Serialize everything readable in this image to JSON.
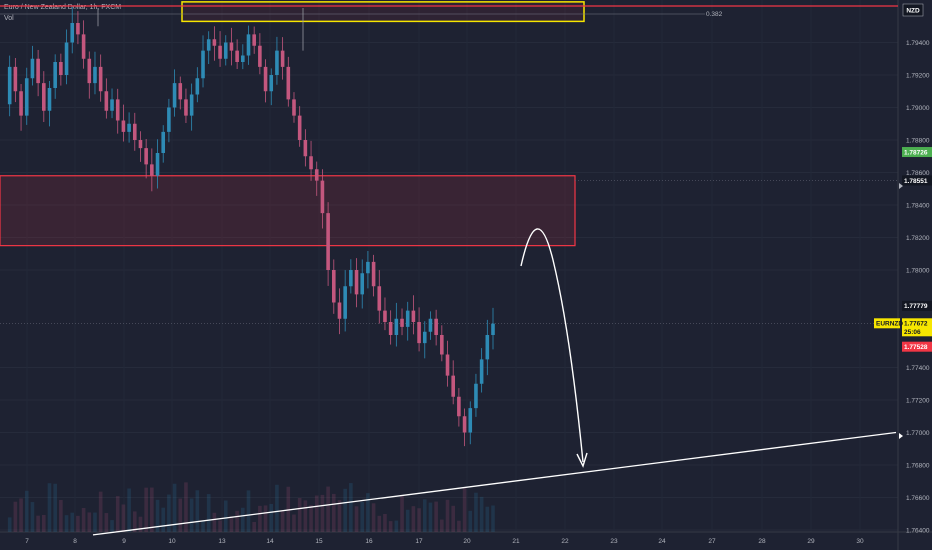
{
  "chart_data": {
    "type": "candlestick",
    "title": "Euro / New Zealand Dollar, 1h, FXCM",
    "volume_label": "Vol",
    "currency": "NZD",
    "symbol": "EURNZD",
    "fib_label": "0.382",
    "ylim": [
      1.764,
      1.796
    ],
    "y_ticks": [
      "1.79400",
      "1.79200",
      "1.79000",
      "1.78800",
      "1.78600",
      "1.78400",
      "1.78200",
      "1.78000",
      "1.77400",
      "1.77200",
      "1.77000",
      "1.76800",
      "1.76600",
      "1.76400"
    ],
    "x_ticks": [
      "7",
      "8",
      "9",
      "10",
      "13",
      "14",
      "15",
      "16",
      "17",
      "20",
      "21",
      "22",
      "23",
      "24",
      "27",
      "28",
      "29",
      "30"
    ],
    "price_tags": [
      {
        "value": "1.78726",
        "bg": "#4caf50",
        "fg": "#ffffff"
      },
      {
        "value": "1.78551",
        "bg": "#131722",
        "fg": "#ffffff"
      },
      {
        "value": "1.77779",
        "bg": "#131722",
        "fg": "#ffffff"
      },
      {
        "value": "1.77672",
        "bg": "#f7e600",
        "fg": "#131722"
      },
      {
        "value": "1.77528",
        "bg": "#f23645",
        "fg": "#ffffff"
      }
    ],
    "countdown": "25:06",
    "colors": {
      "up": "#2e8bb5",
      "down": "#c3577e",
      "resistance_zone": "#f23645",
      "supply_box": "#f7e600",
      "trendline": "#ffffff"
    },
    "close_path": [
      1.7902,
      1.7925,
      1.791,
      1.7895,
      1.7918,
      1.793,
      1.7915,
      1.7898,
      1.7912,
      1.7928,
      1.792,
      1.794,
      1.7952,
      1.7945,
      1.793,
      1.7915,
      1.7925,
      1.791,
      1.7898,
      1.7905,
      1.7892,
      1.7885,
      1.789,
      1.788,
      1.7875,
      1.7865,
      1.7858,
      1.7872,
      1.7885,
      1.79,
      1.7915,
      1.7905,
      1.7895,
      1.7908,
      1.7918,
      1.7935,
      1.7942,
      1.7938,
      1.793,
      1.794,
      1.7935,
      1.7928,
      1.7932,
      1.7945,
      1.7938,
      1.7925,
      1.791,
      1.792,
      1.7935,
      1.7925,
      1.7905,
      1.7895,
      1.788,
      1.787,
      1.7862,
      1.7855,
      1.7835,
      1.78,
      1.778,
      1.777,
      1.779,
      1.78,
      1.7785,
      1.7798,
      1.7805,
      1.779,
      1.7775,
      1.7768,
      1.776,
      1.777,
      1.7765,
      1.7775,
      1.7768,
      1.7755,
      1.7762,
      1.777,
      1.776,
      1.7748,
      1.7735,
      1.7722,
      1.771,
      1.77,
      1.7715,
      1.773,
      1.7745,
      1.776,
      1.7767
    ],
    "resistance_zone": [
      1.7815,
      1.7858
    ],
    "supply_box": [
      1.7953,
      1.7965
    ],
    "trendline": {
      "start": [
        "8",
        1.7637
      ],
      "end": [
        "30",
        1.77
      ]
    }
  }
}
